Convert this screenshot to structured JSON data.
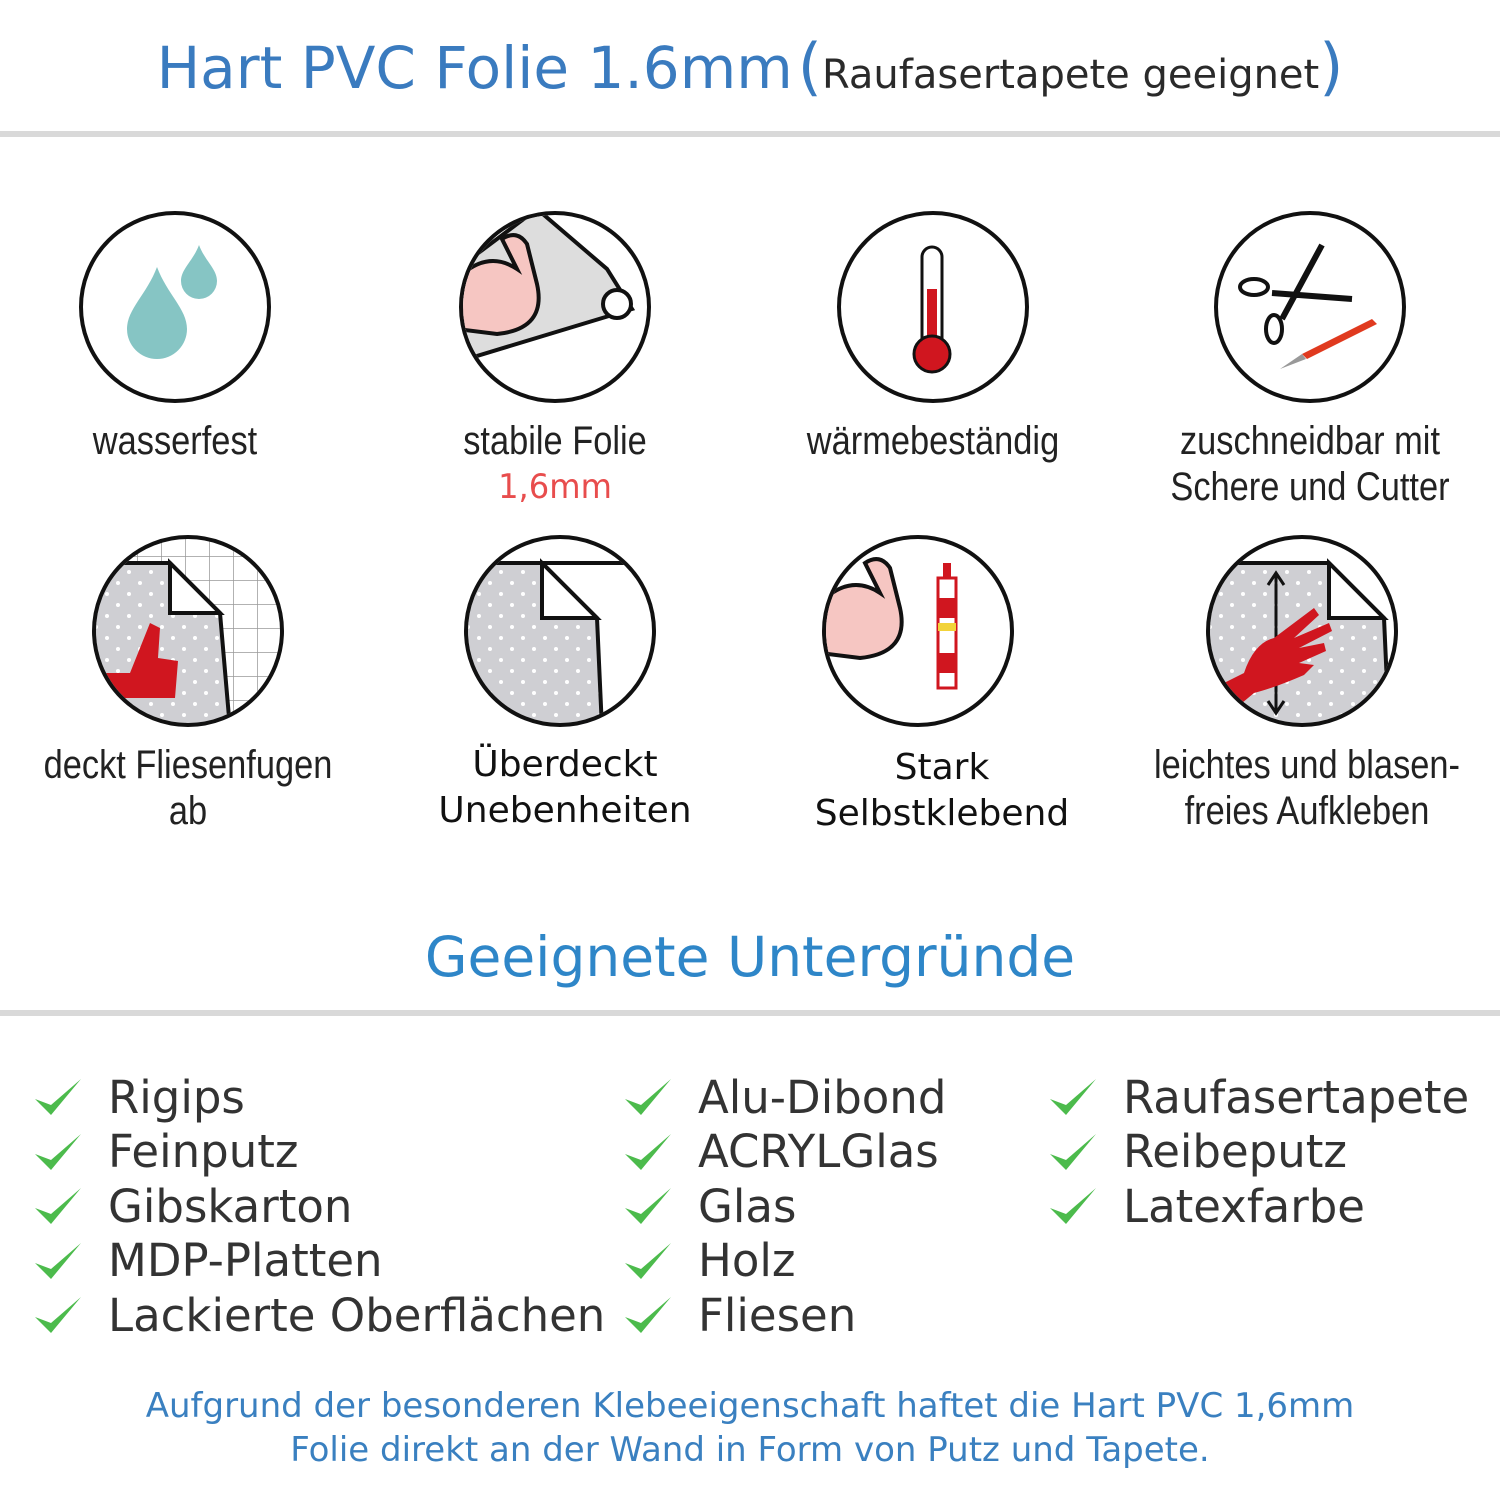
{
  "header": {
    "title": "Hart PVC Folie 1.6mm",
    "open_paren": "(",
    "subtitle": "Raufasertapete geeignet",
    "close_paren": ")"
  },
  "features": [
    {
      "icon": "water-drops-icon",
      "label": "wasserfest"
    },
    {
      "icon": "strong-arm-foil-icon",
      "label": "stabile Folie",
      "highlight": "1,6mm"
    },
    {
      "icon": "thermometer-icon",
      "label": "wärmebeständig"
    },
    {
      "icon": "scissors-cutter-icon",
      "label_line1": "zuschneidbar mit",
      "label_line2": "Schere und Cutter"
    },
    {
      "icon": "thumbs-up-tiles-icon",
      "label": "deckt Fliesenfugen ab"
    },
    {
      "icon": "foil-cover-icon",
      "label_line1": "Überdeckt",
      "label_line2": "Unebenheiten"
    },
    {
      "icon": "strong-arm-glue-icon",
      "label_line1": "Stark",
      "label_line2": "Selbstklebend"
    },
    {
      "icon": "hand-smoothing-icon",
      "label_line1": "leichtes und blasen-",
      "label_line2": "freies Aufkleben"
    }
  ],
  "surfaces": {
    "heading": "Geeignete Untergründe",
    "columns": [
      [
        "Rigips",
        "Feinputz",
        "Gibskarton",
        "MDP-Platten",
        "Lackierte Oberflächen"
      ],
      [
        "Alu-Dibond",
        "ACRYLGlas",
        "Glas",
        "Holz",
        "Fliesen"
      ],
      [
        "Raufasertapete",
        "Reibeputz",
        "Latexfarbe"
      ]
    ]
  },
  "footer": {
    "line1": "Aufgrund der besonderen Klebeeigenschaft haftet die Hart PVC 1,6mm",
    "line2": "Folie direkt an der Wand in Form von Putz und Tapete."
  },
  "colors": {
    "title_blue": "#3a7bbf",
    "check_green": "#4cbb4c",
    "accent_red": "#e84d4d",
    "icon_red": "#d0161f",
    "drop_teal": "#86c5c4"
  }
}
